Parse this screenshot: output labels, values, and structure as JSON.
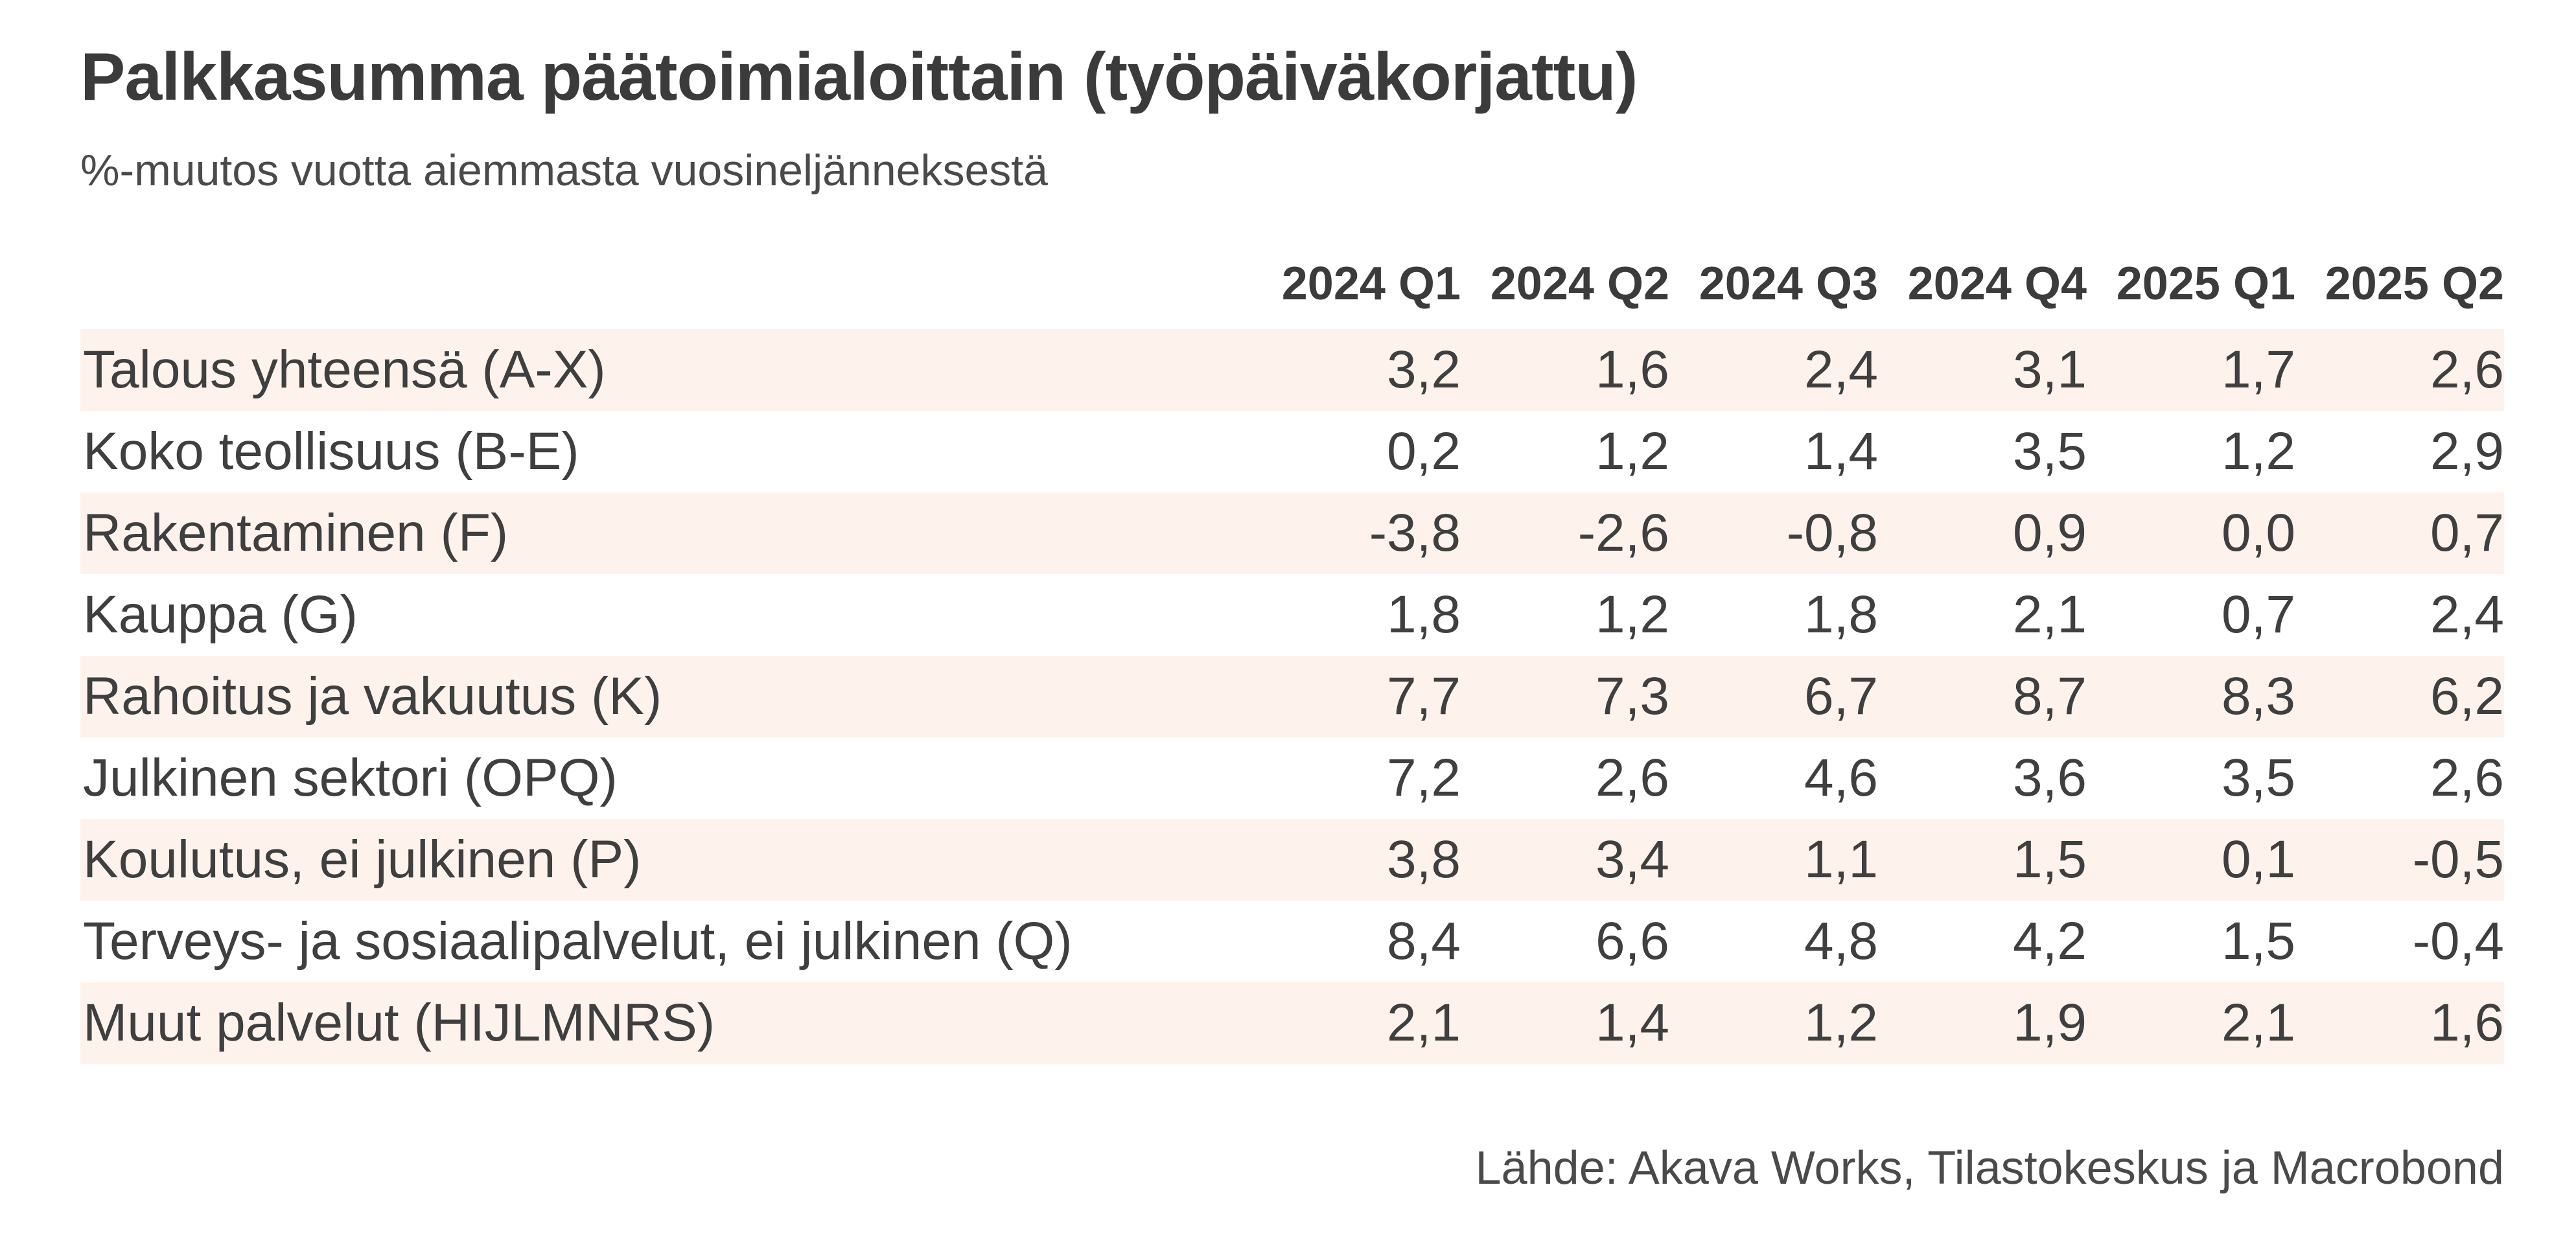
{
  "chart_data": {
    "type": "table",
    "title": "Palkkasumma päätoimialoittain (työpäiväkorjattu)",
    "subtitle": "%-muutos vuotta aiemmasta vuosineljänneksestä",
    "columns": [
      "2024 Q1",
      "2024 Q2",
      "2024 Q3",
      "2024 Q4",
      "2025 Q1",
      "2025 Q2"
    ],
    "rows": [
      {
        "label": "Talous yhteensä (A-X)",
        "values": [
          "3,2",
          "1,6",
          "2,4",
          "3,1",
          "1,7",
          "2,6"
        ]
      },
      {
        "label": "Koko teollisuus (B-E)",
        "values": [
          "0,2",
          "1,2",
          "1,4",
          "3,5",
          "1,2",
          "2,9"
        ]
      },
      {
        "label": "Rakentaminen (F)",
        "values": [
          "-3,8",
          "-2,6",
          "-0,8",
          "0,9",
          "0,0",
          "0,7"
        ]
      },
      {
        "label": "Kauppa (G)",
        "values": [
          "1,8",
          "1,2",
          "1,8",
          "2,1",
          "0,7",
          "2,4"
        ]
      },
      {
        "label": "Rahoitus ja vakuutus (K)",
        "values": [
          "7,7",
          "7,3",
          "6,7",
          "8,7",
          "8,3",
          "6,2"
        ]
      },
      {
        "label": "Julkinen sektori (OPQ)",
        "values": [
          "7,2",
          "2,6",
          "4,6",
          "3,6",
          "3,5",
          "2,6"
        ]
      },
      {
        "label": "Koulutus, ei julkinen (P)",
        "values": [
          "3,8",
          "3,4",
          "1,1",
          "1,5",
          "0,1",
          "-0,5"
        ]
      },
      {
        "label": "Terveys- ja sosiaalipalvelut, ei julkinen (Q)",
        "values": [
          "8,4",
          "6,6",
          "4,8",
          "4,2",
          "1,5",
          "-0,4"
        ]
      },
      {
        "label": "Muut palvelut (HIJLMNRS)",
        "values": [
          "2,1",
          "1,4",
          "1,2",
          "1,9",
          "2,1",
          "1,6"
        ]
      }
    ],
    "source": "Lähde: Akava Works, Tilastokeskus ja Macrobond",
    "colors": {
      "shade": "#fdf3ec",
      "text": "#3f3f3f",
      "background": "#ffffff"
    }
  }
}
